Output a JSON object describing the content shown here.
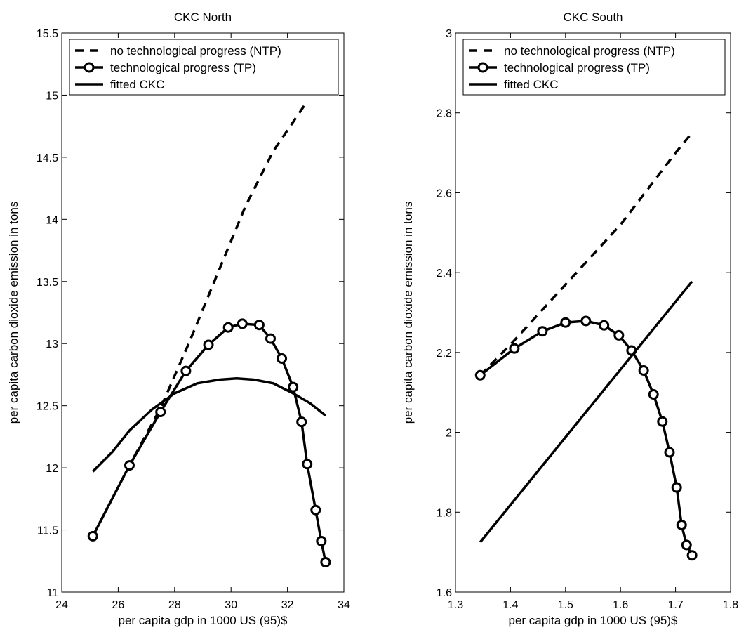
{
  "chart_data": [
    {
      "type": "line",
      "title": "CKC North",
      "xlabel": "per capita gdp in 1000 US (95)$",
      "ylabel": "per capita carbon dioxide emission in tons",
      "xlim": [
        24,
        34
      ],
      "ylim": [
        11,
        15.5
      ],
      "xticks": [
        24,
        26,
        28,
        30,
        32,
        34
      ],
      "yticks": [
        11,
        11.5,
        12,
        12.5,
        13,
        13.5,
        14,
        14.5,
        15,
        15.5
      ],
      "xticklabels": [
        "24",
        "26",
        "28",
        "30",
        "32",
        "34"
      ],
      "yticklabels": [
        "11",
        "11.5",
        "12",
        "12.5",
        "13",
        "13.5",
        "14",
        "14.5",
        "15",
        "15.5"
      ],
      "grid": false,
      "legend_position": "top",
      "series": [
        {
          "name": "no technological progress (NTP)",
          "style": "dashed",
          "x": [
            25.1,
            26.4,
            27.5,
            28.5,
            29.5,
            30.5,
            31.5,
            32.7
          ],
          "y": [
            11.45,
            12.02,
            12.48,
            13.0,
            13.55,
            14.1,
            14.55,
            14.95
          ]
        },
        {
          "name": "technological progress (TP)",
          "style": "solid-circle",
          "x": [
            25.1,
            26.4,
            27.5,
            28.4,
            29.2,
            29.9,
            30.4,
            31.0,
            31.4,
            31.8,
            32.2,
            32.5,
            32.7,
            33.0,
            33.2,
            33.35
          ],
          "y": [
            11.45,
            12.02,
            12.45,
            12.78,
            12.99,
            13.13,
            13.16,
            13.15,
            13.04,
            12.88,
            12.65,
            12.37,
            12.03,
            11.66,
            11.41,
            11.24
          ]
        },
        {
          "name": "fitted CKC",
          "style": "solid",
          "x": [
            25.1,
            25.8,
            26.4,
            27.2,
            28.0,
            28.8,
            29.6,
            30.2,
            30.8,
            31.5,
            32.2,
            32.8,
            33.35
          ],
          "y": [
            11.97,
            12.13,
            12.3,
            12.47,
            12.6,
            12.68,
            12.71,
            12.72,
            12.71,
            12.68,
            12.6,
            12.52,
            12.42
          ]
        }
      ]
    },
    {
      "type": "line",
      "title": "CKC South",
      "xlabel": "per capita gdp in 1000 US (95)$",
      "ylabel": "per capita carbon dioxide emission in tons",
      "xlim": [
        1.3,
        1.8
      ],
      "ylim": [
        1.6,
        3
      ],
      "xticks": [
        1.3,
        1.4,
        1.5,
        1.6,
        1.7,
        1.8
      ],
      "yticks": [
        1.6,
        1.8,
        2,
        2.2,
        2.4,
        2.6,
        2.8,
        3
      ],
      "xticklabels": [
        "1.3",
        "1.4",
        "1.5",
        "1.6",
        "1.7",
        "1.8"
      ],
      "yticklabels": [
        "1.6",
        "1.8",
        "2",
        "2.2",
        "2.4",
        "2.6",
        "2.8",
        "3"
      ],
      "grid": false,
      "legend_position": "top",
      "series": [
        {
          "name": "no technological progress (NTP)",
          "style": "dashed",
          "x": [
            1.345,
            1.4,
            1.5,
            1.6,
            1.7,
            1.73
          ],
          "y": [
            2.143,
            2.22,
            2.37,
            2.52,
            2.7,
            2.75
          ]
        },
        {
          "name": "technological progress (TP)",
          "style": "solid-circle",
          "x": [
            1.345,
            1.407,
            1.458,
            1.5,
            1.537,
            1.57,
            1.597,
            1.62,
            1.642,
            1.66,
            1.676,
            1.689,
            1.702,
            1.711,
            1.72,
            1.73
          ],
          "y": [
            2.143,
            2.21,
            2.253,
            2.275,
            2.279,
            2.268,
            2.243,
            2.205,
            2.155,
            2.095,
            2.027,
            1.95,
            1.862,
            1.768,
            1.718,
            1.692
          ]
        },
        {
          "name": "fitted CKC",
          "style": "solid",
          "x": [
            1.345,
            1.73
          ],
          "y": [
            1.725,
            2.378
          ]
        }
      ]
    }
  ]
}
